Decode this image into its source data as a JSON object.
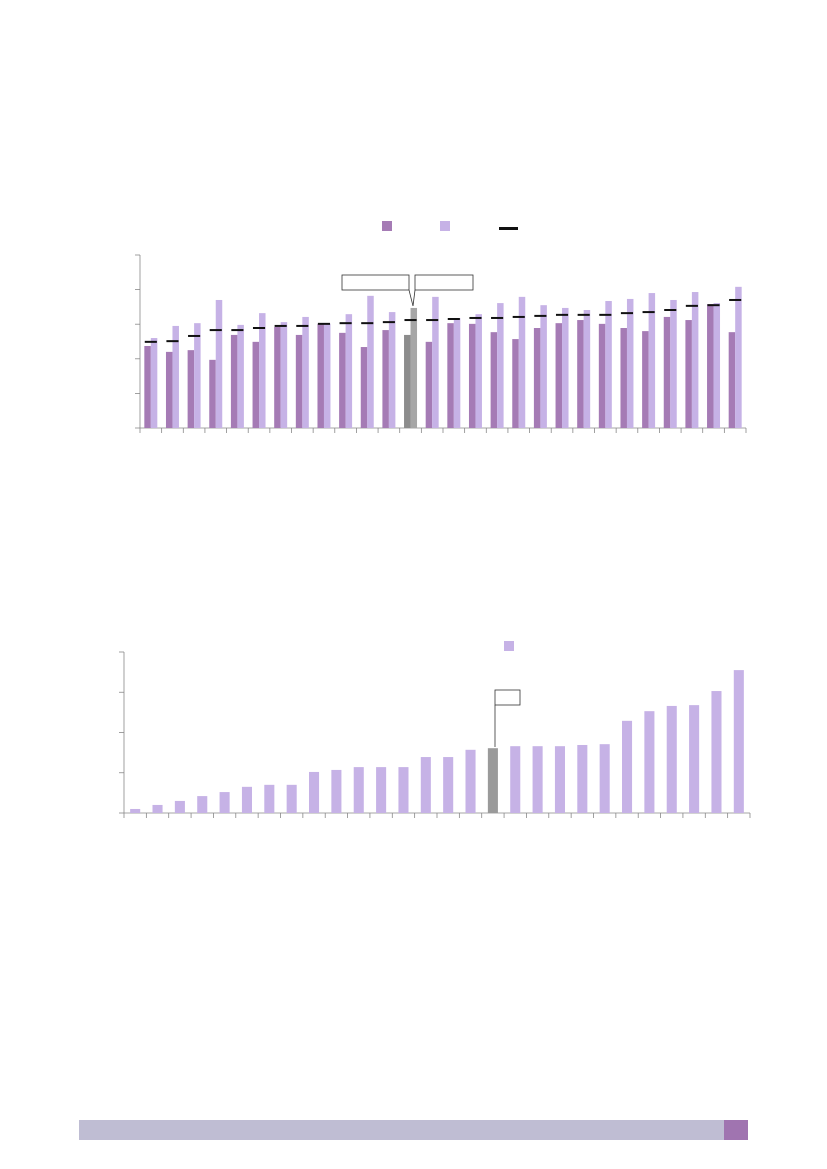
{
  "charts": [
    {
      "chart_data": {
        "type": "bar",
        "ylim": [
          0,
          5
        ],
        "yticks": [
          0,
          1,
          2,
          3,
          4,
          5
        ],
        "highlight": {
          "index": 12,
          "colors": [
            "#8c8c8c",
            "#a6a6a6"
          ]
        },
        "series": [
          {
            "kind": "bar",
            "color": "#a57bb5",
            "values": [
              2.37,
              2.2,
              2.25,
              1.97,
              2.69,
              2.49,
              2.92,
              2.69,
              3.01,
              2.75,
              2.34,
              2.83,
              2.69,
              2.49,
              3.03,
              3.01,
              2.77,
              2.57,
              2.89,
              3.03,
              3.12,
              3.01,
              2.89,
              2.8,
              3.21,
              3.12,
              3.58,
              2.77
            ]
          },
          {
            "kind": "bar",
            "color": "#c6b2e6",
            "values": [
              2.6,
              2.95,
              3.03,
              3.7,
              2.98,
              3.32,
              3.06,
              3.21,
              3.01,
              3.29,
              3.82,
              3.35,
              3.47,
              3.79,
              3.18,
              3.29,
              3.61,
              3.79,
              3.55,
              3.47,
              3.41,
              3.67,
              3.73,
              3.9,
              3.7,
              3.93,
              3.61,
              4.08
            ]
          },
          {
            "kind": "dash",
            "color": "#111111",
            "values": [
              2.49,
              2.51,
              2.66,
              2.83,
              2.83,
              2.89,
              2.95,
              2.95,
              3.01,
              3.03,
              3.03,
              3.06,
              3.12,
              3.12,
              3.15,
              3.18,
              3.18,
              3.21,
              3.24,
              3.27,
              3.27,
              3.27,
              3.32,
              3.35,
              3.41,
              3.53,
              3.55,
              3.7
            ]
          }
        ]
      }
    },
    {
      "chart_data": {
        "type": "bar",
        "ylim": [
          0,
          4
        ],
        "yticks": [
          0,
          1,
          2,
          3,
          4
        ],
        "highlight": {
          "index": 16,
          "colors": [
            "#9a9a9a"
          ]
        },
        "series": [
          {
            "kind": "bar",
            "color": "#c6b2e6",
            "values": [
              0.1,
              0.2,
              0.3,
              0.42,
              0.52,
              0.65,
              0.7,
              0.7,
              1.02,
              1.07,
              1.14,
              1.14,
              1.14,
              1.39,
              1.39,
              1.57,
              1.61,
              1.66,
              1.66,
              1.66,
              1.69,
              1.71,
              2.29,
              2.53,
              2.66,
              2.68,
              3.03,
              3.55
            ]
          }
        ]
      }
    }
  ]
}
